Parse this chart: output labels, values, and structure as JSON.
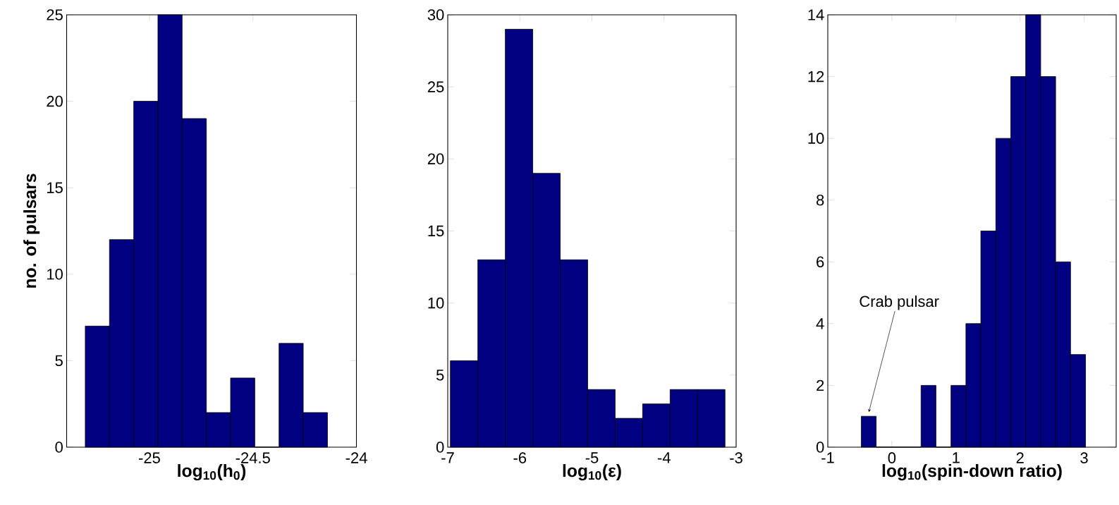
{
  "chart_data": [
    {
      "type": "histogram",
      "xlabel": "log$_{10}$(h$_{0}$)",
      "ylabel": "no. of pulsars",
      "color": "#000080",
      "bins": [
        -25.31,
        -25.193,
        -25.076,
        -24.959,
        -24.842,
        -24.725,
        -24.608,
        -24.491,
        -24.374,
        -24.257,
        -24.14
      ],
      "values": [
        7,
        12,
        20,
        25,
        19,
        2,
        4,
        0,
        6,
        2
      ],
      "xlim": [
        -25.4,
        -24
      ],
      "ylim": [
        0,
        25
      ],
      "xticks": [
        -25,
        -24.5,
        -24
      ],
      "yticks": [
        0,
        5,
        10,
        15,
        20,
        25
      ]
    },
    {
      "type": "histogram",
      "xlabel": "log$_{10}$(ε)",
      "color": "#000080",
      "bins": [
        -6.964,
        -6.583,
        -6.202,
        -5.821,
        -5.44,
        -5.059,
        -4.678,
        -4.297,
        -3.916,
        -3.535,
        -3.154
      ],
      "values": [
        6,
        13,
        29,
        19,
        13,
        4,
        2,
        3,
        4,
        4
      ],
      "xlim": [
        -7,
        -3
      ],
      "ylim": [
        0,
        30
      ],
      "xticks": [
        -7,
        -6,
        -5,
        -4,
        -3
      ],
      "yticks": [
        0,
        5,
        10,
        15,
        20,
        25,
        30
      ]
    },
    {
      "type": "histogram",
      "xlabel": "log$_{10}$(spin-down ratio)",
      "color": "#000080",
      "bins": [
        -0.478,
        -0.245,
        -0.011,
        0.222,
        0.455,
        0.688,
        0.922,
        1.155,
        1.388,
        1.622,
        1.855,
        2.088,
        2.322,
        2.555,
        2.788,
        3.022
      ],
      "values": [
        1,
        0,
        0,
        0,
        2,
        0,
        2,
        4,
        7,
        10,
        12,
        14,
        12,
        6,
        3
      ],
      "xlim": [
        -1,
        3.5
      ],
      "ylim": [
        0,
        14
      ],
      "xticks": [
        -1,
        0,
        1,
        2,
        3
      ],
      "yticks": [
        0,
        2,
        4,
        6,
        8,
        10,
        12,
        14
      ],
      "annotations": [
        {
          "text": "Crab pulsar",
          "x": -0.36,
          "y": 1
        }
      ]
    }
  ]
}
